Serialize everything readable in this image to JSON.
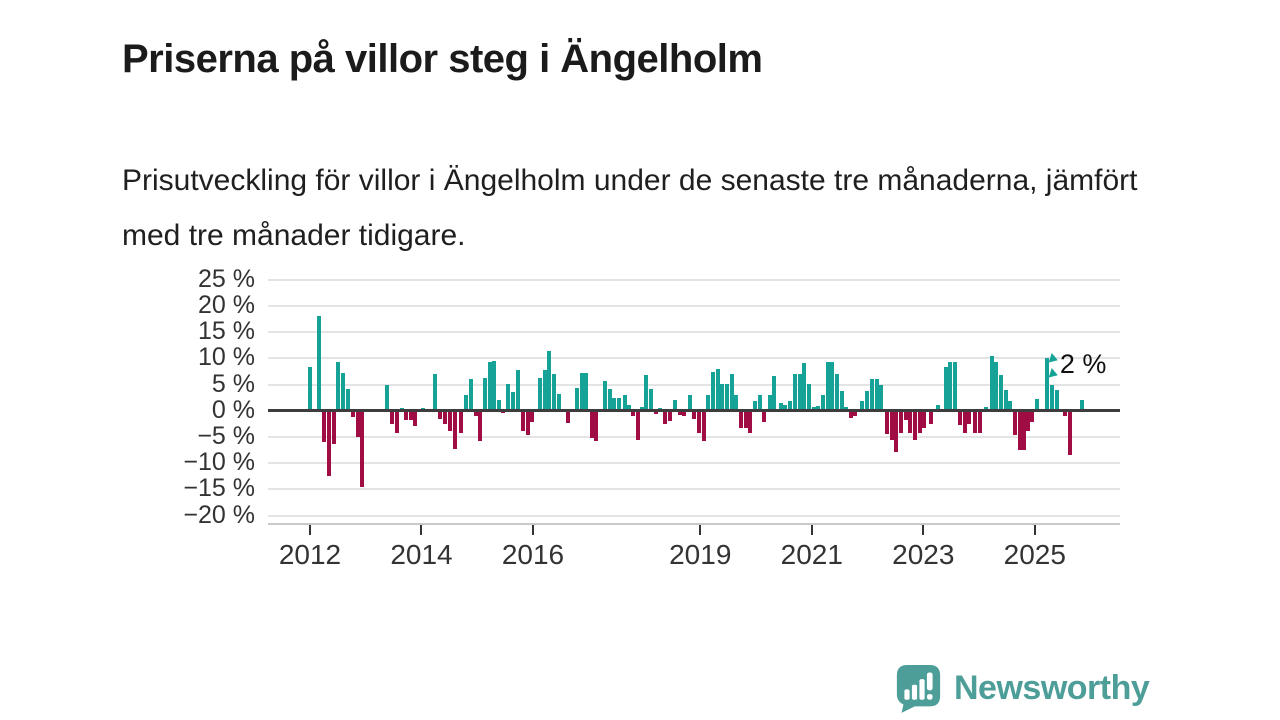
{
  "header": {
    "title": "Priserna på villor steg i Ängelholm",
    "subtitle": "Prisutveckling för villor i Ängelholm under de senaste tre månaderna, jämfört med tre månader tidigare."
  },
  "annotation": {
    "label": "2 %",
    "t": 2025.45,
    "v": 9.2,
    "arrow_t": 2025.35,
    "arrow_v": 10.9
  },
  "branding": {
    "name": "Newsworthy",
    "logo_icon": "bar-chart-exclamation-badge-icon",
    "color": "#4d9e99"
  },
  "colors": {
    "positive": "#17a297",
    "negative": "#a00d45",
    "grid": "#e4e4e4",
    "zero_line": "#3d3d3d",
    "axis_text": "#333333",
    "title_text": "#1b1b1b"
  },
  "chart_data": {
    "type": "bar",
    "title": "Priserna på villor steg i Ängelholm",
    "xlabel": "",
    "ylabel": "",
    "unit": "%",
    "grid": true,
    "xlim": [
      2011.247,
      2026.528
    ],
    "ylim": [
      -21.4,
      25.9
    ],
    "y_ticks": [
      25,
      20,
      15,
      10,
      5,
      0,
      -5,
      -10,
      -15,
      -20
    ],
    "y_tick_labels": [
      "25 %",
      "20 %",
      "15 %",
      "10 %",
      "5 %",
      "0 %",
      "−5 %",
      "−10 %",
      "−15 %",
      "−20 %"
    ],
    "x_ticks": [
      2012,
      2014,
      2016,
      2019,
      2021,
      2023,
      2025
    ],
    "x_tick_labels": [
      "2012",
      "2014",
      "2016",
      "2019",
      "2021",
      "2023",
      "2025"
    ],
    "points": [
      [
        2012.0,
        8.4
      ],
      [
        2012.16,
        18.0
      ],
      [
        2012.25,
        -6.0
      ],
      [
        2012.34,
        -12.5
      ],
      [
        2012.43,
        -6.3
      ],
      [
        2012.5,
        9.3
      ],
      [
        2012.59,
        7.2
      ],
      [
        2012.68,
        4.2
      ],
      [
        2012.77,
        -1.2
      ],
      [
        2012.86,
        -5.0
      ],
      [
        2012.93,
        -14.5
      ],
      [
        2013.38,
        5.0
      ],
      [
        2013.47,
        -2.6
      ],
      [
        2013.56,
        -4.3
      ],
      [
        2013.65,
        0.6
      ],
      [
        2013.72,
        -1.8
      ],
      [
        2013.81,
        -1.8
      ],
      [
        2013.88,
        -2.9
      ],
      [
        2014.03,
        0.6
      ],
      [
        2014.24,
        7.0
      ],
      [
        2014.33,
        -1.5
      ],
      [
        2014.42,
        -2.5
      ],
      [
        2014.51,
        -3.8
      ],
      [
        2014.6,
        -7.3
      ],
      [
        2014.71,
        -4.2
      ],
      [
        2014.8,
        3.0
      ],
      [
        2014.89,
        6.0
      ],
      [
        2014.98,
        -1.0
      ],
      [
        2015.05,
        -5.8
      ],
      [
        2015.14,
        6.3
      ],
      [
        2015.23,
        9.4
      ],
      [
        2015.3,
        9.5
      ],
      [
        2015.39,
        2.1
      ],
      [
        2015.46,
        -0.5
      ],
      [
        2015.55,
        5.2
      ],
      [
        2015.64,
        3.5
      ],
      [
        2015.73,
        7.7
      ],
      [
        2015.82,
        -3.9
      ],
      [
        2015.91,
        -4.6
      ],
      [
        2015.98,
        -2.2
      ],
      [
        2016.13,
        6.3
      ],
      [
        2016.22,
        7.8
      ],
      [
        2016.29,
        11.5
      ],
      [
        2016.38,
        7.0
      ],
      [
        2016.47,
        3.2
      ],
      [
        2016.63,
        -2.4
      ],
      [
        2016.79,
        4.3
      ],
      [
        2016.88,
        7.2
      ],
      [
        2016.95,
        7.2
      ],
      [
        2017.06,
        -5.2
      ],
      [
        2017.13,
        -5.8
      ],
      [
        2017.29,
        5.6
      ],
      [
        2017.38,
        4.1
      ],
      [
        2017.45,
        2.5
      ],
      [
        2017.54,
        2.4
      ],
      [
        2017.65,
        3.1
      ],
      [
        2017.72,
        1.1
      ],
      [
        2017.79,
        -1.0
      ],
      [
        2017.88,
        -5.5
      ],
      [
        2017.96,
        0.8
      ],
      [
        2018.03,
        6.9
      ],
      [
        2018.12,
        4.2
      ],
      [
        2018.21,
        -0.7
      ],
      [
        2018.28,
        0.6
      ],
      [
        2018.37,
        -2.6
      ],
      [
        2018.46,
        -2.0
      ],
      [
        2018.55,
        2.1
      ],
      [
        2018.64,
        -0.8
      ],
      [
        2018.71,
        -1.0
      ],
      [
        2018.82,
        3.0
      ],
      [
        2018.89,
        -1.6
      ],
      [
        2018.98,
        -4.2
      ],
      [
        2019.07,
        -5.8
      ],
      [
        2019.14,
        3.1
      ],
      [
        2019.23,
        7.4
      ],
      [
        2019.32,
        7.9
      ],
      [
        2019.39,
        5.1
      ],
      [
        2019.48,
        5.1
      ],
      [
        2019.57,
        7.1
      ],
      [
        2019.64,
        3.0
      ],
      [
        2019.73,
        -3.3
      ],
      [
        2019.82,
        -3.3
      ],
      [
        2019.89,
        -4.2
      ],
      [
        2019.98,
        1.9
      ],
      [
        2020.07,
        3.1
      ],
      [
        2020.14,
        -2.2
      ],
      [
        2020.25,
        3.0
      ],
      [
        2020.32,
        6.6
      ],
      [
        2020.45,
        1.4
      ],
      [
        2020.52,
        1.1
      ],
      [
        2020.61,
        1.9
      ],
      [
        2020.7,
        7.0
      ],
      [
        2020.79,
        7.0
      ],
      [
        2020.86,
        9.1
      ],
      [
        2020.95,
        5.1
      ],
      [
        2021.04,
        0.8
      ],
      [
        2021.11,
        1.0
      ],
      [
        2021.2,
        3.1
      ],
      [
        2021.29,
        9.4
      ],
      [
        2021.36,
        9.4
      ],
      [
        2021.45,
        7.0
      ],
      [
        2021.54,
        3.7
      ],
      [
        2021.61,
        0.8
      ],
      [
        2021.7,
        -1.3
      ],
      [
        2021.78,
        -1.0
      ],
      [
        2021.9,
        1.9
      ],
      [
        2021.99,
        3.8
      ],
      [
        2022.08,
        6.1
      ],
      [
        2022.17,
        6.1
      ],
      [
        2022.24,
        4.9
      ],
      [
        2022.35,
        -4.4
      ],
      [
        2022.44,
        -5.5
      ],
      [
        2022.51,
        -7.8
      ],
      [
        2022.6,
        -4.2
      ],
      [
        2022.69,
        -1.7
      ],
      [
        2022.76,
        -4.2
      ],
      [
        2022.85,
        -5.5
      ],
      [
        2022.94,
        -4.2
      ],
      [
        2023.01,
        -3.3
      ],
      [
        2023.14,
        -2.5
      ],
      [
        2023.26,
        1.1
      ],
      [
        2023.41,
        8.3
      ],
      [
        2023.48,
        9.3
      ],
      [
        2023.57,
        9.3
      ],
      [
        2023.66,
        -2.8
      ],
      [
        2023.75,
        -4.2
      ],
      [
        2023.82,
        -2.6
      ],
      [
        2023.93,
        -4.2
      ],
      [
        2024.02,
        -4.2
      ],
      [
        2024.13,
        0.8
      ],
      [
        2024.23,
        10.5
      ],
      [
        2024.31,
        9.3
      ],
      [
        2024.4,
        6.9
      ],
      [
        2024.49,
        4.0
      ],
      [
        2024.56,
        1.9
      ],
      [
        2024.65,
        -4.7
      ],
      [
        2024.74,
        -7.4
      ],
      [
        2024.81,
        -7.4
      ],
      [
        2024.88,
        -3.9
      ],
      [
        2024.95,
        -2.2
      ],
      [
        2025.04,
        2.2
      ],
      [
        2025.22,
        10.0
      ],
      [
        2025.31,
        5.0
      ],
      [
        2025.4,
        4.0
      ],
      [
        2025.54,
        -1.0
      ],
      [
        2025.63,
        -8.5
      ],
      [
        2025.85,
        2.0
      ]
    ],
    "legend": null,
    "latest_value_label": "2 %"
  }
}
